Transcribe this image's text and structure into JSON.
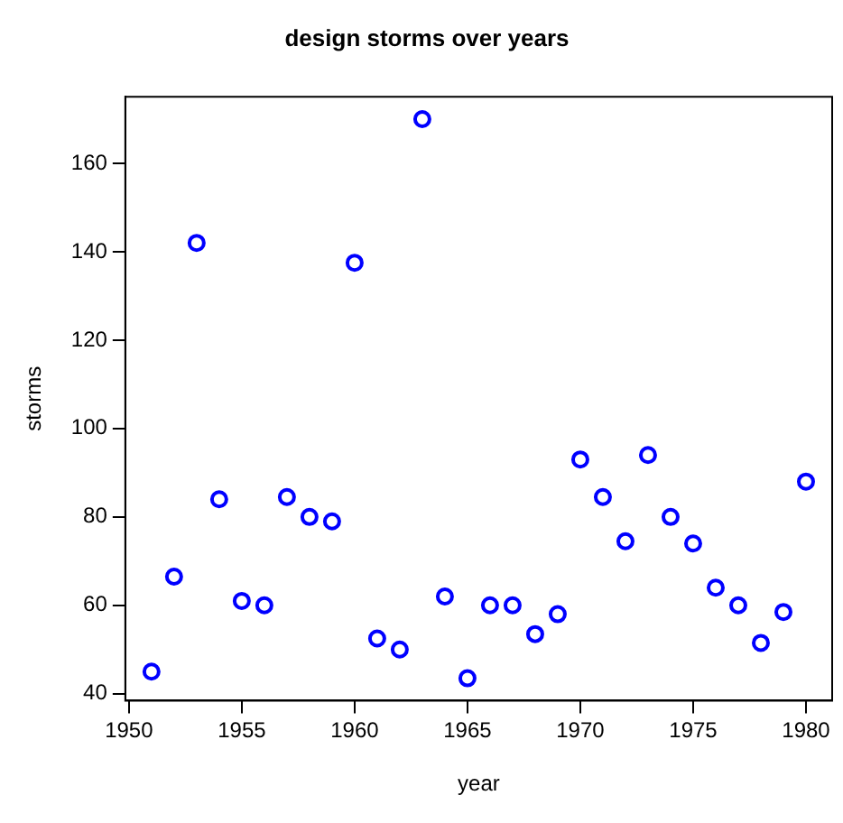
{
  "chart_data": {
    "type": "scatter",
    "title": "design storms over years",
    "xlabel": "year",
    "ylabel": "storms",
    "x": [
      1951,
      1952,
      1953,
      1954,
      1955,
      1956,
      1957,
      1958,
      1959,
      1960,
      1961,
      1962,
      1963,
      1964,
      1965,
      1966,
      1967,
      1968,
      1969,
      1970,
      1971,
      1972,
      1973,
      1974,
      1975,
      1976,
      1977,
      1978,
      1979,
      1980
    ],
    "values": [
      45,
      66.5,
      142,
      84,
      61,
      60,
      84.5,
      80,
      79,
      137.5,
      52.5,
      50,
      170,
      62,
      43.5,
      60,
      60,
      53.5,
      58,
      93,
      84.5,
      74.5,
      94,
      80,
      74,
      64,
      60,
      51.5,
      58.5,
      88
    ],
    "color": "#0000ff",
    "marker": "circle",
    "grid": false,
    "legend": false,
    "xlim": [
      1949.84,
      1981.16
    ],
    "ylim": [
      38.44,
      175.06
    ],
    "xticks": [
      1950,
      1955,
      1960,
      1965,
      1970,
      1975,
      1980
    ],
    "yticks": [
      40,
      60,
      80,
      100,
      120,
      140,
      160
    ]
  }
}
